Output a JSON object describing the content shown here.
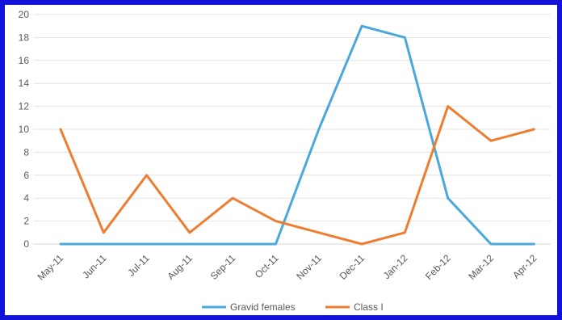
{
  "chart_data": {
    "type": "line",
    "categories": [
      "May-11",
      "Jun-11",
      "Jul-11",
      "Aug-11",
      "Sep-11",
      "Oct-11",
      "Nov-11",
      "Dec-11",
      "Jan-12",
      "Feb-12",
      "Mar-12",
      "Apr-12"
    ],
    "series": [
      {
        "name": "Gravid females",
        "color": "#4aa8dc",
        "values": [
          0,
          0,
          0,
          0,
          0,
          0,
          10,
          19,
          18,
          4,
          0,
          0
        ]
      },
      {
        "name": "Class I",
        "color": "#ed7d31",
        "values": [
          10,
          1,
          6,
          1,
          4,
          2,
          1,
          0,
          1,
          12,
          9,
          10
        ]
      }
    ],
    "yticks": [
      "0",
      "2",
      "4",
      "6",
      "8",
      "10",
      "12",
      "14",
      "16",
      "18",
      "20"
    ],
    "ylim": [
      0,
      20
    ],
    "grid": true,
    "legend_position": "bottom"
  },
  "frame_color": "#1111d8"
}
